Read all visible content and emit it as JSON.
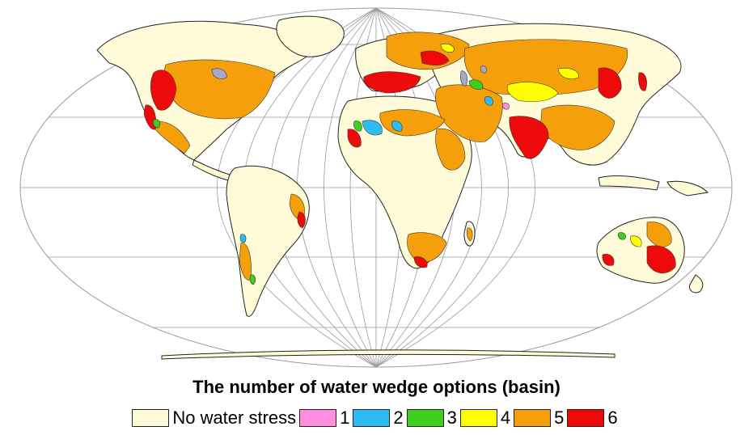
{
  "legend": {
    "title": "The number of water wedge options (basin)",
    "items": [
      {
        "label": "No water stress",
        "color": "#fffbd9"
      },
      {
        "label": "1",
        "color": "#ff8ee0"
      },
      {
        "label": "2",
        "color": "#2cbcf2"
      },
      {
        "label": "3",
        "color": "#3ecf1e"
      },
      {
        "label": "4",
        "color": "#ffff00"
      },
      {
        "label": "5",
        "color": "#f5a00b"
      },
      {
        "label": "6",
        "color": "#ee0a0a"
      }
    ]
  },
  "map": {
    "projection": "Robinson",
    "graticule": true,
    "ocean_color": "#ffffff",
    "land_default_color": "#fffbd9",
    "lake_color": "#a7a7c7"
  }
}
